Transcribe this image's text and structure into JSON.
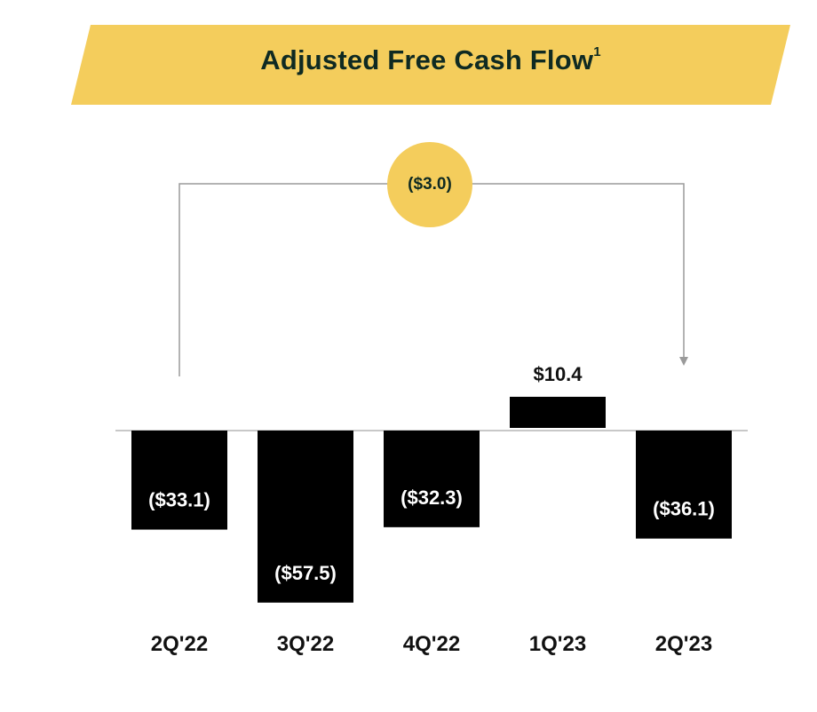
{
  "chart_data": {
    "type": "bar",
    "title": "Adjusted Free Cash Flow",
    "title_footnote": "1",
    "categories": [
      "2Q'22",
      "3Q'22",
      "4Q'22",
      "1Q'23",
      "2Q'23"
    ],
    "values": [
      -33.1,
      -57.5,
      -32.3,
      10.4,
      -36.1
    ],
    "value_labels": [
      "($33.1)",
      "($57.5)",
      "($32.3)",
      "$10.4",
      "($36.1)"
    ],
    "change_annotation": {
      "from": "2Q'22",
      "to": "2Q'23",
      "value": -3.0,
      "label": "($3.0)"
    },
    "xlabel": "",
    "ylabel": "",
    "grid": false,
    "legend": "none",
    "colors": {
      "bar": "#000000",
      "banner": "#f4cd5c",
      "badge": "#f4cd5c",
      "title": "#0f2a22",
      "baseline": "#c8c8c8",
      "connector": "#9a9a9a"
    }
  }
}
